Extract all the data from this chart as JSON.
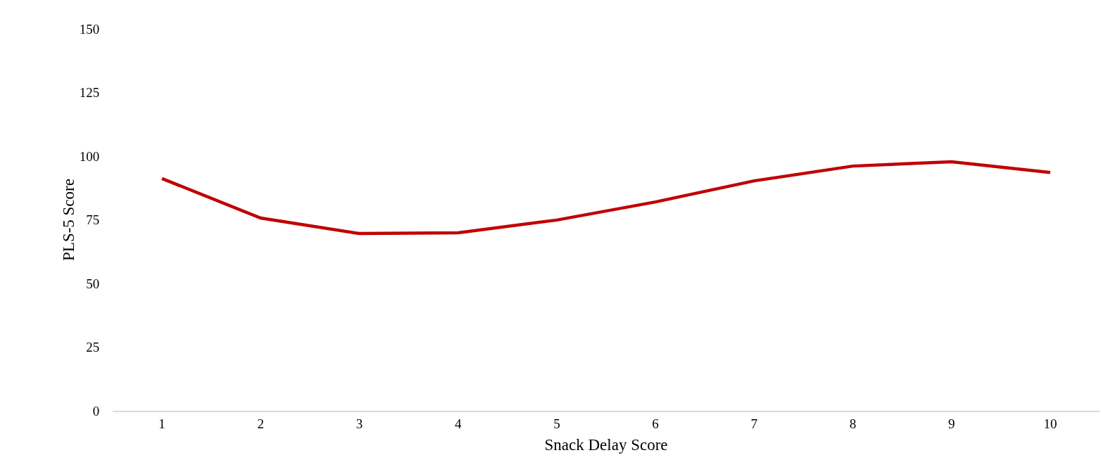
{
  "chart_data": {
    "type": "line",
    "xlabel": "Snack Delay Score",
    "ylabel": "PLS-5 Score",
    "categories": [
      "1",
      "2",
      "3",
      "4",
      "5",
      "6",
      "7",
      "8",
      "9",
      "10"
    ],
    "series": [
      {
        "color": "#c00000",
        "values": [
          91.2,
          75.7,
          69.6,
          69.9,
          74.9,
          82.0,
          90.3,
          96.1,
          97.8,
          93.6
        ]
      }
    ],
    "ylim": [
      0,
      150
    ],
    "yticks": [
      0,
      25,
      50,
      75,
      100,
      125,
      150
    ],
    "marker": "none",
    "line_style": "solid"
  }
}
